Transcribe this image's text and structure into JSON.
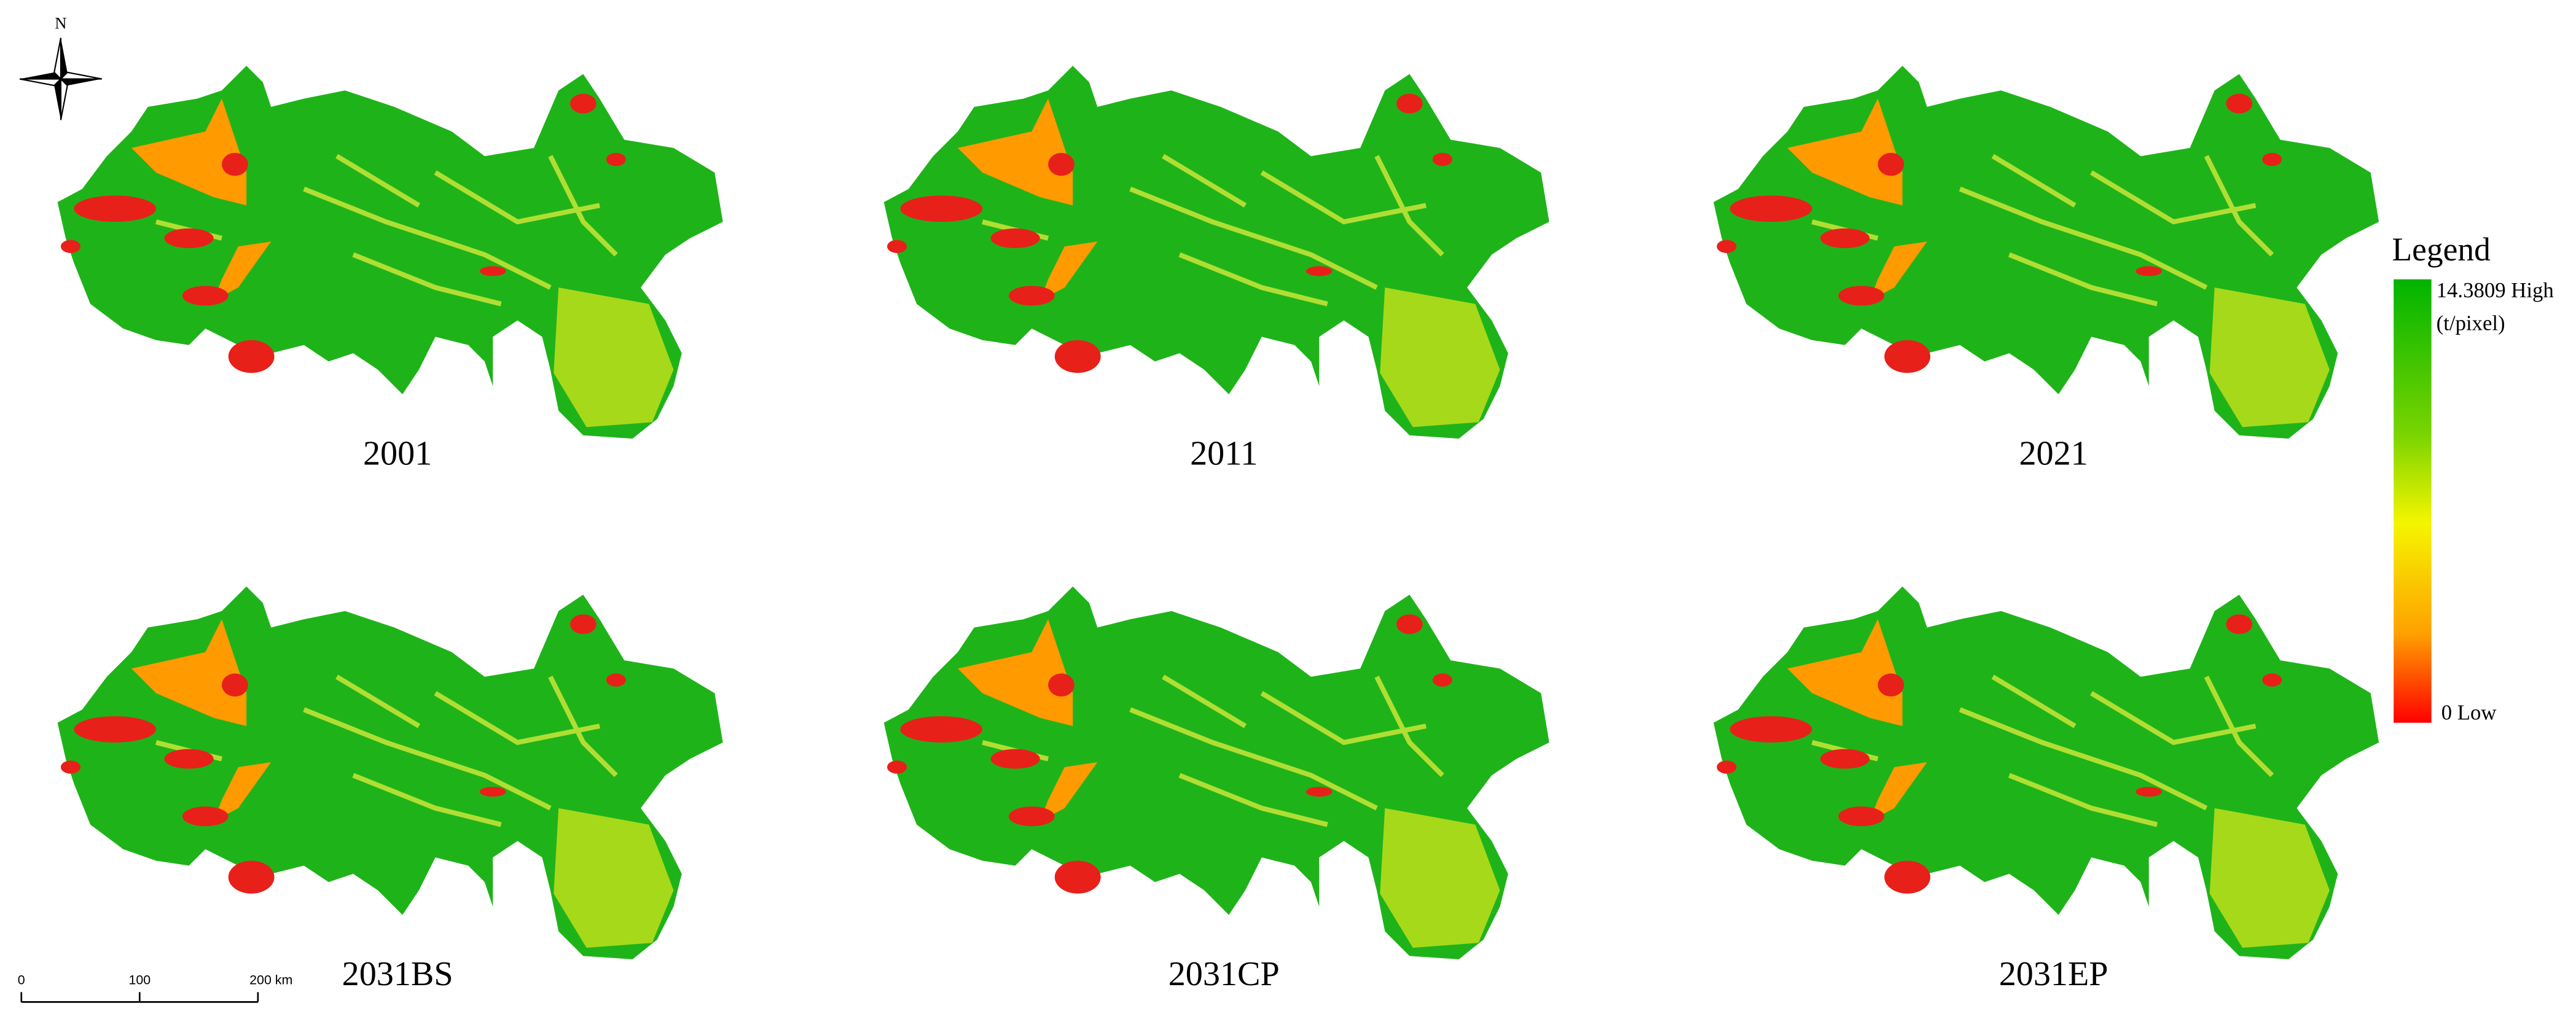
{
  "north_label": "N",
  "panels": [
    {
      "label": "2001"
    },
    {
      "label": "2011"
    },
    {
      "label": "2021"
    },
    {
      "label": "2031BS"
    },
    {
      "label": "2031CP"
    },
    {
      "label": "2031EP"
    }
  ],
  "legend": {
    "title": "Legend",
    "high": "14.3809 High",
    "unit": "(t/pixel)",
    "low": "0 Low"
  },
  "scale_bar": {
    "labels": [
      "0",
      "100",
      "200 km"
    ]
  }
}
